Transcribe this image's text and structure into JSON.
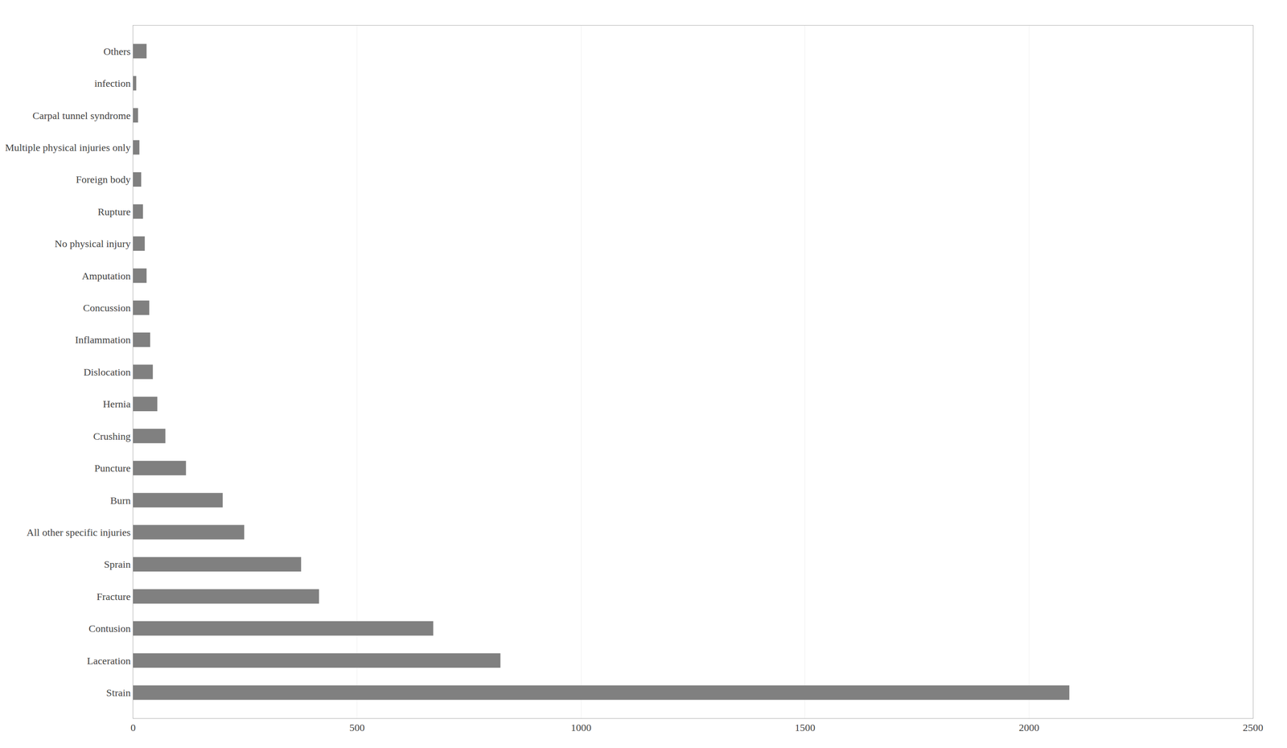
{
  "chart_data": {
    "type": "bar",
    "orientation": "horizontal",
    "categories": [
      "Strain",
      "Laceration",
      "Contusion",
      "Fracture",
      "Sprain",
      "All other specific injuries",
      "Burn",
      "Puncture",
      "Crushing",
      "Hernia",
      "Dislocation",
      "Inflammation",
      "Concussion",
      "Amputation",
      "No physical injury",
      "Rupture",
      "Foreign body",
      "Multiple physical injuries only",
      "Carpal tunnel syndrome",
      "infection",
      "Others"
    ],
    "values": [
      2090,
      820,
      670,
      415,
      375,
      248,
      200,
      118,
      72,
      54,
      44,
      38,
      36,
      30,
      26,
      22,
      18,
      14,
      11,
      7,
      30
    ],
    "color": "#808080",
    "xlim": [
      0,
      2500
    ],
    "xticks": [
      0,
      500,
      1000,
      1500,
      2000,
      2500
    ],
    "grid": true
  }
}
